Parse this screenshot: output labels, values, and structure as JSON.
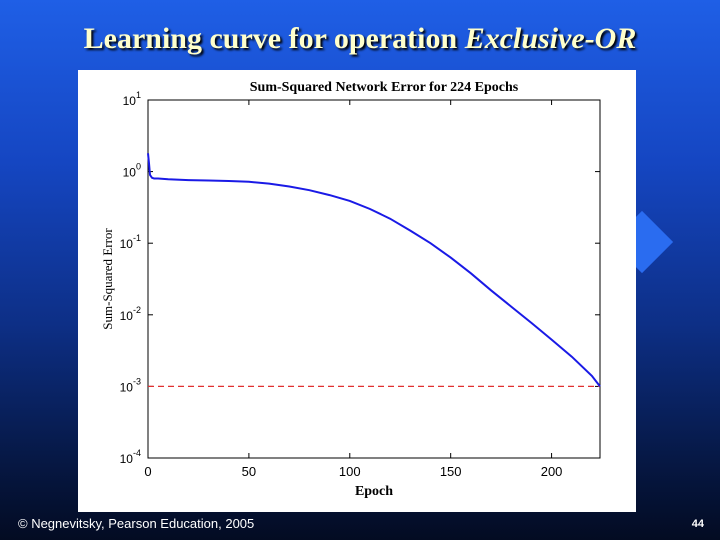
{
  "slide": {
    "title_main": "Learning curve for operation ",
    "title_italic": "Exclusive-OR",
    "footer_credit": "© Negnevitsky, Pearson Education, 2005",
    "page_number": "44"
  },
  "colors": {
    "curve": "#1a1ae6",
    "goal_line": "#e03030",
    "axes": "#000000"
  },
  "chart_data": {
    "type": "line",
    "title": "Sum-Squared Network Error for 224 Epochs",
    "xlabel": "Epoch",
    "ylabel": "Sum-Squared Error",
    "xlim": [
      0,
      224
    ],
    "ylim": [
      0.0001,
      10
    ],
    "yscale": "log",
    "grid": false,
    "x_ticks": [
      0,
      50,
      100,
      150,
      200
    ],
    "y_ticks": [
      {
        "value": 10,
        "base": "10",
        "exp": "1"
      },
      {
        "value": 1,
        "base": "10",
        "exp": "0"
      },
      {
        "value": 0.1,
        "base": "10",
        "exp": "-1"
      },
      {
        "value": 0.01,
        "base": "10",
        "exp": "-2"
      },
      {
        "value": 0.001,
        "base": "10",
        "exp": "-3"
      },
      {
        "value": 0.0001,
        "base": "10",
        "exp": "-4"
      }
    ],
    "series": [
      {
        "x": [
          0,
          0.5,
          1,
          2,
          3,
          5,
          10,
          20,
          30,
          40,
          50,
          60,
          70,
          80,
          90,
          100,
          110,
          120,
          130,
          140,
          150,
          160,
          170,
          180,
          190,
          200,
          210,
          220,
          224
        ],
        "y": [
          1.8,
          1.3,
          0.9,
          0.82,
          0.8,
          0.8,
          0.78,
          0.76,
          0.75,
          0.74,
          0.72,
          0.68,
          0.62,
          0.55,
          0.47,
          0.39,
          0.3,
          0.22,
          0.15,
          0.1,
          0.063,
          0.038,
          0.022,
          0.013,
          0.0077,
          0.0045,
          0.0026,
          0.0014,
          0.001
        ]
      }
    ],
    "reference_lines": [
      {
        "y": 0.001,
        "style": "dashed"
      }
    ]
  }
}
